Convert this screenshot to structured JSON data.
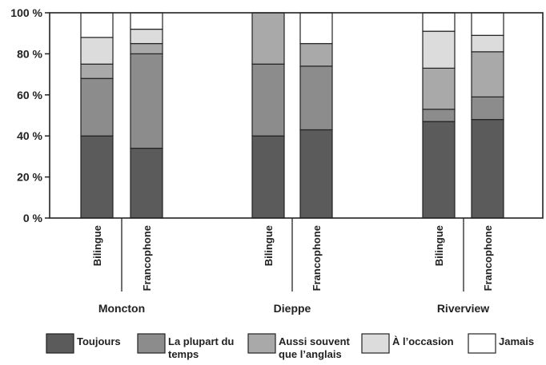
{
  "chart_data": {
    "type": "bar",
    "stacked": true,
    "ylim": [
      0,
      100
    ],
    "yticks": [
      "0 %",
      "20 %",
      "40 %",
      "60 %",
      "80 %",
      "100 %"
    ],
    "groups": [
      {
        "name": "Moncton",
        "categories": [
          "Bilingue",
          "Francophone"
        ]
      },
      {
        "name": "Dieppe",
        "categories": [
          "Bilingue",
          "Francophone"
        ]
      },
      {
        "name": "Riverview",
        "categories": [
          "Bilingue",
          "Francophone"
        ]
      }
    ],
    "series": [
      {
        "name": "Toujours",
        "color": "#5b5b5b",
        "values": [
          40,
          34,
          40,
          43,
          47,
          48
        ]
      },
      {
        "name": "La plupart du temps",
        "color": "#8c8c8c",
        "values": [
          28,
          46,
          35,
          31,
          6,
          11
        ]
      },
      {
        "name": "Aussi souvent que l’anglais",
        "color": "#a9a9a9",
        "values": [
          7,
          5,
          25,
          11,
          20,
          22
        ]
      },
      {
        "name": "À l’occasion",
        "color": "#dcdcdc",
        "values": [
          13,
          7,
          0,
          0,
          18,
          8
        ]
      },
      {
        "name": "Jamais",
        "color": "#ffffff",
        "values": [
          12,
          8,
          0,
          15,
          9,
          11
        ]
      }
    ],
    "grid": false,
    "legend_position": "bottom"
  }
}
